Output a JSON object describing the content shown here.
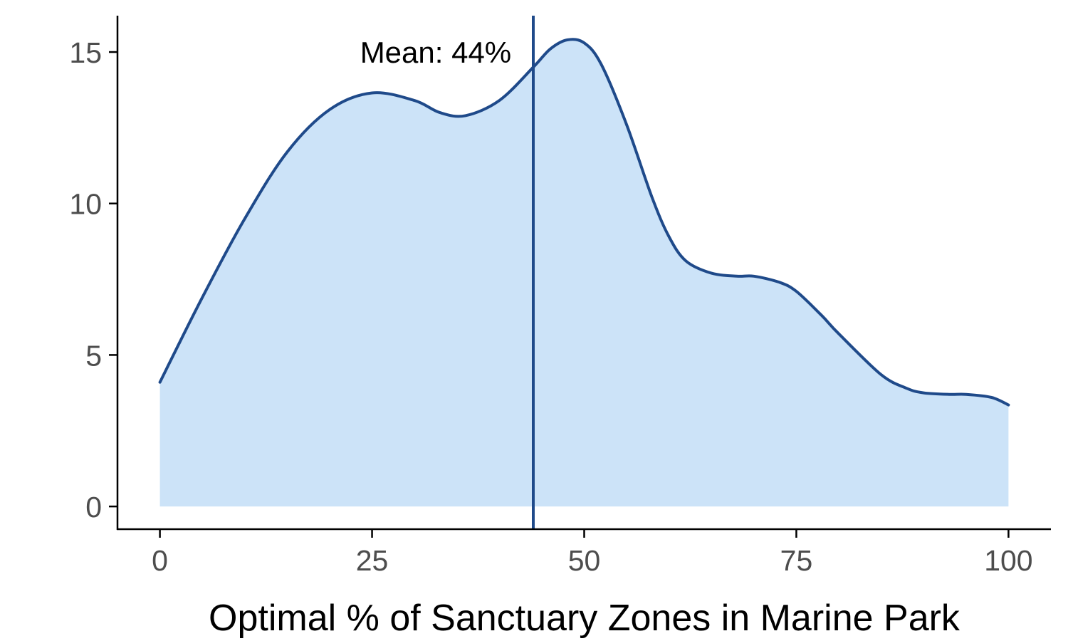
{
  "chart_data": {
    "type": "area",
    "title": "",
    "xlabel": "Optimal % of Sanctuary Zones in Marine Park",
    "ylabel": "",
    "xlim": [
      -5,
      105
    ],
    "ylim": [
      -0.75,
      16.2
    ],
    "xticks": [
      0,
      25,
      50,
      75,
      100
    ],
    "yticks": [
      0,
      5,
      10,
      15
    ],
    "grid": false,
    "legend": "none",
    "colors": {
      "fill": "#cce3f8",
      "line": "#1f4a8a",
      "mean_line": "#1f4a8a",
      "axis": "#000000",
      "tick_text": "#4d4d4d"
    },
    "series": [
      {
        "x": [
          0,
          5,
          10,
          15,
          20,
          25,
          30,
          33,
          36,
          40,
          44,
          46,
          48,
          50,
          52,
          55,
          58,
          60,
          62,
          65,
          68,
          70,
          73,
          75,
          78,
          80,
          85,
          88,
          90,
          93,
          95,
          98,
          100
        ],
        "y": [
          4.1,
          6.9,
          9.5,
          11.7,
          13.1,
          13.65,
          13.4,
          13.0,
          12.9,
          13.4,
          14.5,
          15.1,
          15.4,
          15.3,
          14.6,
          12.6,
          10.2,
          8.9,
          8.1,
          7.7,
          7.6,
          7.6,
          7.4,
          7.1,
          6.3,
          5.7,
          4.35,
          3.9,
          3.75,
          3.7,
          3.7,
          3.6,
          3.35
        ]
      }
    ],
    "mean": {
      "value": 44,
      "label": "Mean: 44%"
    }
  }
}
